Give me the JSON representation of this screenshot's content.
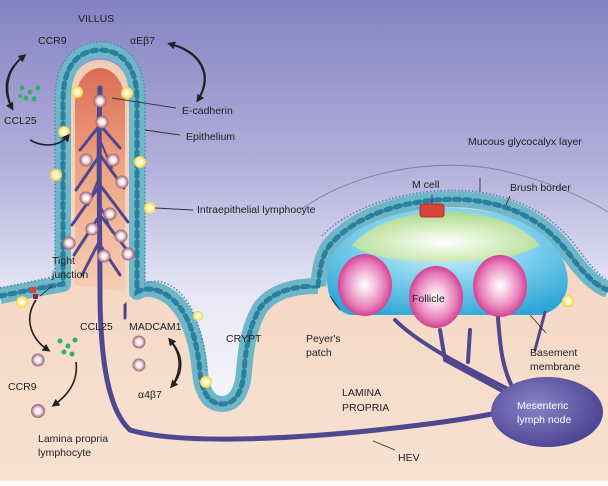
{
  "diagram": {
    "labels": {
      "villus": "VILLUS",
      "ccr9_top": "CCR9",
      "alpha_e_beta7": "αEβ7",
      "ccl25_top": "CCL25",
      "e_cadherin": "E-cadherin",
      "epithelium": "Epithelium",
      "mucous_layer": "Mucous glycocalyx layer",
      "m_cell": "M cell",
      "brush_border": "Brush border",
      "iel": "Intraepithelial lymphocyte",
      "tight_junction_1": "Tight",
      "tight_junction_2": "junction",
      "follicle": "Follicle",
      "ccl25_bottom": "CCL25",
      "madcam1": "MADCAM1",
      "crypt": "CRYPT",
      "peyers_patch_1": "Peyer's",
      "peyers_patch_2": "patch",
      "basement_membrane_1": "Basement",
      "basement_membrane_2": "membrane",
      "ccr9_bottom": "CCR9",
      "alpha4_beta7": "α4β7",
      "lamina_propria_1": "LAMINA",
      "lamina_propria_2": "PROPRIA",
      "mesenteric_1": "Mesenteric",
      "mesenteric_2": "lymph node",
      "lp_lymphocyte_1": "Lamina propria",
      "lp_lymphocyte_2": "lymphocyte",
      "hev": "HEV"
    },
    "colors": {
      "background_top": "#8a85c4",
      "background_bottom": "#ffffff",
      "lamina": "#f3d2bc",
      "epithelium_cell": "#6fb6c9",
      "nucleus": "#2a7f9c",
      "vessel": "#4f478f",
      "lymph_node": "#5a51a0",
      "follicle": "#d84f9b",
      "dome": "#3fb4da",
      "cap": "#b8dd9a",
      "m_cell": "#d9443b"
    }
  }
}
